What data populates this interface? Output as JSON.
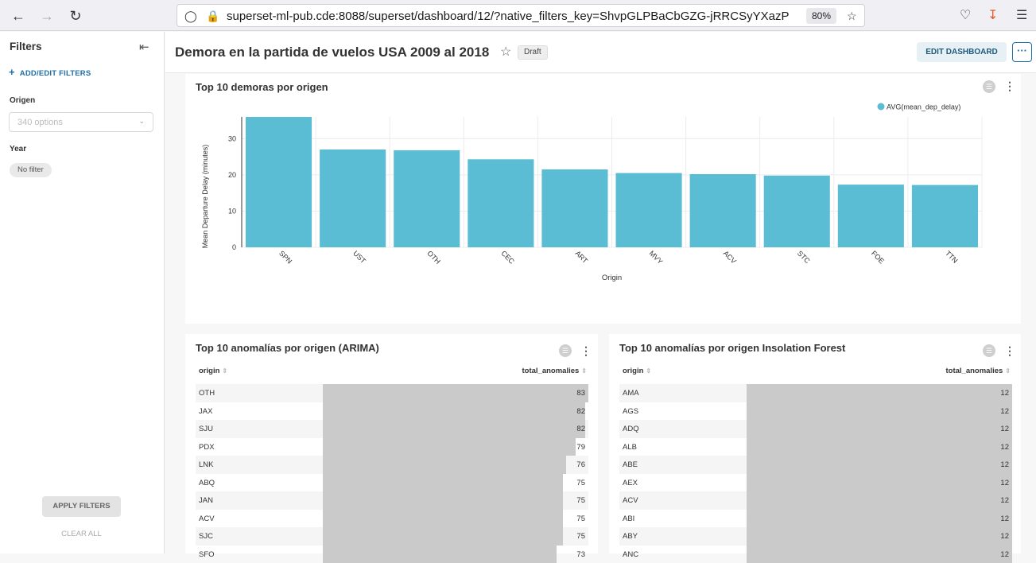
{
  "browser": {
    "url": "superset-ml-pub.cde:8088/superset/dashboard/12/?native_filters_key=ShvpGLPBaCbGZG-jRRCSyYXazP",
    "zoom": "80%"
  },
  "sidebar": {
    "title": "Filters",
    "add_label": "ADD/EDIT FILTERS",
    "origen_label": "Origen",
    "origen_placeholder": "340 options",
    "year_label": "Year",
    "year_tag": "No filter",
    "apply_label": "APPLY FILTERS",
    "clear_label": "CLEAR ALL"
  },
  "header": {
    "title": "Demora en la partida de vuelos USA 2009 al 2018",
    "badge": "Draft",
    "edit_label": "EDIT DASHBOARD",
    "more_label": "···"
  },
  "chart_panel": {
    "title": "Top 10 demoras por origen"
  },
  "chart_data": {
    "type": "bar",
    "categories": [
      "SPN",
      "UST",
      "OTH",
      "CEC",
      "ART",
      "MVY",
      "ACV",
      "STC",
      "FOE",
      "TTN"
    ],
    "series": [
      {
        "name": "AVG(mean_dep_delay)",
        "values": [
          36,
          27,
          26.8,
          24.3,
          21.5,
          20.5,
          20.2,
          19.8,
          17.3,
          17.2
        ]
      }
    ],
    "xlabel": "Origin",
    "ylabel": "Mean Departure Delay (minutes)",
    "yticks": [
      0,
      10,
      20,
      30
    ],
    "ylim": [
      0,
      36
    ],
    "legend": "top-right",
    "grid": true,
    "color": "#5bbdd3"
  },
  "arima_panel": {
    "title": "Top 10 anomalías por origen (ARIMA)",
    "col_origin": "origin",
    "col_total": "total_anomalies",
    "max": 83,
    "rows": [
      {
        "origin": "OTH",
        "total": 83
      },
      {
        "origin": "JAX",
        "total": 82
      },
      {
        "origin": "SJU",
        "total": 82
      },
      {
        "origin": "PDX",
        "total": 79
      },
      {
        "origin": "LNK",
        "total": 76
      },
      {
        "origin": "ABQ",
        "total": 75
      },
      {
        "origin": "JAN",
        "total": 75
      },
      {
        "origin": "ACV",
        "total": 75
      },
      {
        "origin": "SJC",
        "total": 75
      },
      {
        "origin": "SFO",
        "total": 73
      }
    ]
  },
  "iforest_panel": {
    "title": "Top 10 anomalías por origen Insolation Forest",
    "col_origin": "origin",
    "col_total": "total_anomalies",
    "max": 12,
    "rows": [
      {
        "origin": "AMA",
        "total": 12
      },
      {
        "origin": "AGS",
        "total": 12
      },
      {
        "origin": "ADQ",
        "total": 12
      },
      {
        "origin": "ALB",
        "total": 12
      },
      {
        "origin": "ABE",
        "total": 12
      },
      {
        "origin": "AEX",
        "total": 12
      },
      {
        "origin": "ACV",
        "total": 12
      },
      {
        "origin": "ABI",
        "total": 12
      },
      {
        "origin": "ABY",
        "total": 12
      },
      {
        "origin": "ANC",
        "total": 12
      }
    ]
  }
}
